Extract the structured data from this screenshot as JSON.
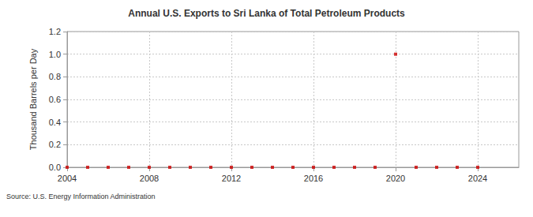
{
  "chart_data": {
    "type": "scatter",
    "title": "Annual U.S. Exports to Sri Lanka of Total Petroleum Products",
    "ylabel": "Thousand Barrels per Day",
    "annotation": "Source: U.S. Energy Information Administration",
    "x": [
      2004,
      2005,
      2006,
      2007,
      2008,
      2009,
      2010,
      2011,
      2012,
      2013,
      2014,
      2015,
      2016,
      2017,
      2018,
      2019,
      2020,
      2021,
      2022,
      2023,
      2024
    ],
    "values": [
      0,
      0,
      0,
      0,
      0,
      0,
      0,
      0,
      0,
      0,
      0,
      0,
      0,
      0,
      0,
      0,
      1.0,
      0,
      0,
      0,
      0
    ],
    "color": "#cc0000",
    "marker": "square",
    "xlim": [
      2004,
      2026
    ],
    "xticks": [
      2004,
      2008,
      2012,
      2016,
      2020,
      2024
    ],
    "ylim": [
      0,
      1.2
    ],
    "yticks": [
      {
        "value": 0,
        "label": "0.0"
      },
      {
        "value": 0.2,
        "label": "0.2"
      },
      {
        "value": 0.4,
        "label": "0.4"
      },
      {
        "value": 0.6,
        "label": "0.6"
      },
      {
        "value": 0.8,
        "label": "0.8"
      },
      {
        "value": 1.0,
        "label": "1.0"
      },
      {
        "value": 1.2,
        "label": "1.2"
      }
    ],
    "grid": true
  }
}
